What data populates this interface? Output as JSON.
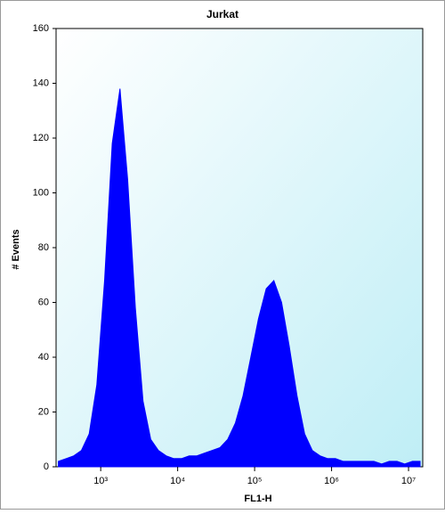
{
  "chart_data": {
    "type": "histogram",
    "title": "Jurkat",
    "x_label": "FL1-H",
    "y_label": "# Events",
    "log_x": true,
    "color": "#0000ff",
    "x": [
      282,
      355,
      447,
      562,
      708,
      891,
      1122,
      1413,
      1778,
      2239,
      2818,
      3548,
      4467,
      5623,
      7079,
      8913,
      11220,
      14125,
      17783,
      22387,
      28184,
      35481,
      44668,
      56234,
      70795,
      89125,
      112202,
      141254,
      177828,
      223872,
      281838,
      354813,
      446684,
      562341,
      707946,
      891251,
      1122018,
      1412538,
      1778279,
      2238721,
      2818383,
      3548134,
      4466836,
      5623413,
      7079458,
      8912509,
      11220185,
      14125375
    ],
    "values": [
      2,
      3,
      4,
      6,
      12,
      30,
      68,
      118,
      138,
      105,
      58,
      24,
      10,
      6,
      4,
      3,
      3,
      4,
      4,
      5,
      6,
      7,
      10,
      16,
      26,
      40,
      54,
      65,
      68,
      60,
      44,
      26,
      12,
      6,
      4,
      3,
      3,
      2,
      2,
      2,
      2,
      2,
      1,
      2,
      2,
      1,
      2,
      2
    ],
    "xlim": [
      263,
      15300000
    ],
    "ylim": [
      0,
      160
    ],
    "xticks": [
      {
        "value": 1000,
        "label": "10³"
      },
      {
        "value": 10000,
        "label": "10⁴"
      },
      {
        "value": 100000,
        "label": "10⁵"
      },
      {
        "value": 1000000,
        "label": "10⁶"
      },
      {
        "value": 10000000,
        "label": "10⁷"
      }
    ],
    "yticks": [
      0,
      20,
      40,
      60,
      80,
      100,
      120,
      140,
      160
    ]
  }
}
